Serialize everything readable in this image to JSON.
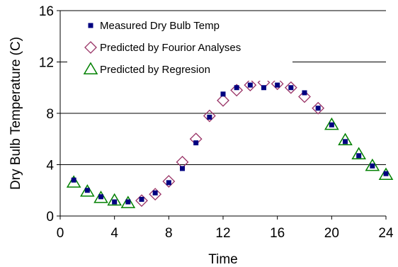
{
  "chart_data": {
    "type": "scatter",
    "title": "",
    "xlabel": "Time",
    "ylabel": "Dry Bulb Temperature (C)",
    "xlim": [
      0,
      24
    ],
    "ylim": [
      0,
      16
    ],
    "xticks": [
      "0",
      "4",
      "8",
      "12",
      "16",
      "20",
      "24"
    ],
    "yticks": [
      "0",
      "4",
      "8",
      "12",
      "16"
    ],
    "grid": "horizontal",
    "legend_position": "top-left",
    "series": [
      {
        "name": "Measured Dry Bulb Temp",
        "marker": "filled-square",
        "color": "#000080",
        "x": [
          1,
          2,
          3,
          4,
          5,
          6,
          7,
          8,
          9,
          10,
          11,
          12,
          13,
          14,
          15,
          16,
          17,
          18,
          19,
          20,
          21,
          22,
          23,
          24
        ],
        "y": [
          2.8,
          2.0,
          1.5,
          1.1,
          1.1,
          1.3,
          1.8,
          2.6,
          3.7,
          5.7,
          7.7,
          9.5,
          10.0,
          10.2,
          10.0,
          10.2,
          10.0,
          9.6,
          8.4,
          7.1,
          5.8,
          4.7,
          3.9,
          3.3
        ]
      },
      {
        "name": "Predicted by Fourior Analyses",
        "marker": "hollow-diamond",
        "color": "#993366",
        "x": [
          6,
          7,
          8,
          9,
          10,
          11,
          12,
          13,
          14,
          15,
          16,
          17,
          18,
          19
        ],
        "y": [
          1.2,
          1.7,
          2.7,
          4.2,
          6.0,
          7.8,
          9.0,
          9.8,
          10.2,
          10.4,
          10.3,
          10.0,
          9.3,
          8.4
        ]
      },
      {
        "name": "Predicted by Regresion",
        "marker": "hollow-triangle",
        "color": "#008000",
        "x": [
          1,
          2,
          3,
          4,
          5,
          20,
          21,
          22,
          23,
          24
        ],
        "y": [
          2.6,
          1.9,
          1.4,
          1.2,
          1.0,
          7.1,
          5.9,
          4.8,
          3.9,
          3.2
        ]
      }
    ]
  }
}
